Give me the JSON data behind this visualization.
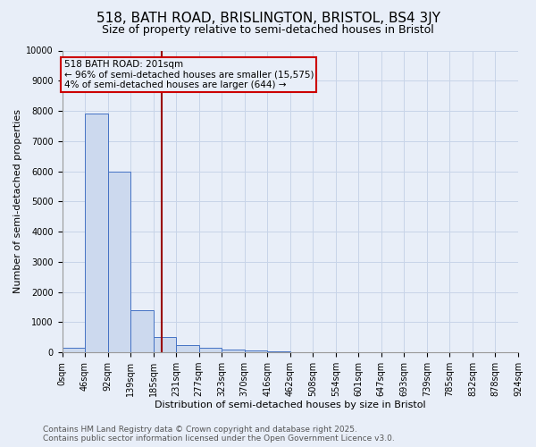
{
  "title": "518, BATH ROAD, BRISLINGTON, BRISTOL, BS4 3JY",
  "subtitle": "Size of property relative to semi-detached houses in Bristol",
  "xlabel": "Distribution of semi-detached houses by size in Bristol",
  "ylabel": "Number of semi-detached properties",
  "bar_values": [
    150,
    7900,
    6000,
    1400,
    500,
    250,
    150,
    100,
    50,
    20,
    10,
    5,
    3,
    2,
    1,
    1,
    0,
    0,
    0,
    0
  ],
  "bin_labels": [
    "0sqm",
    "46sqm",
    "92sqm",
    "139sqm",
    "185sqm",
    "231sqm",
    "277sqm",
    "323sqm",
    "370sqm",
    "416sqm",
    "462sqm",
    "508sqm",
    "554sqm",
    "601sqm",
    "647sqm",
    "693sqm",
    "739sqm",
    "785sqm",
    "832sqm",
    "878sqm",
    "924sqm"
  ],
  "bar_color": "#ccd9ee",
  "bar_edge_color": "#4472c4",
  "grid_color": "#c8d4e8",
  "background_color": "#e8eef8",
  "property_bin": 4.35,
  "vline_color": "#990000",
  "annotation_text_line1": "518 BATH ROAD: 201sqm",
  "annotation_text_line2": "← 96% of semi-detached houses are smaller (15,575)",
  "annotation_text_line3": "4% of semi-detached houses are larger (644) →",
  "annotation_box_color": "#cc0000",
  "ylim": [
    0,
    10000
  ],
  "yticks": [
    0,
    1000,
    2000,
    3000,
    4000,
    5000,
    6000,
    7000,
    8000,
    9000,
    10000
  ],
  "footer_line1": "Contains HM Land Registry data © Crown copyright and database right 2025.",
  "footer_line2": "Contains public sector information licensed under the Open Government Licence v3.0.",
  "title_fontsize": 11,
  "subtitle_fontsize": 9,
  "axis_fontsize": 8,
  "tick_fontsize": 7,
  "footer_fontsize": 6.5,
  "annotation_fontsize": 7.5
}
